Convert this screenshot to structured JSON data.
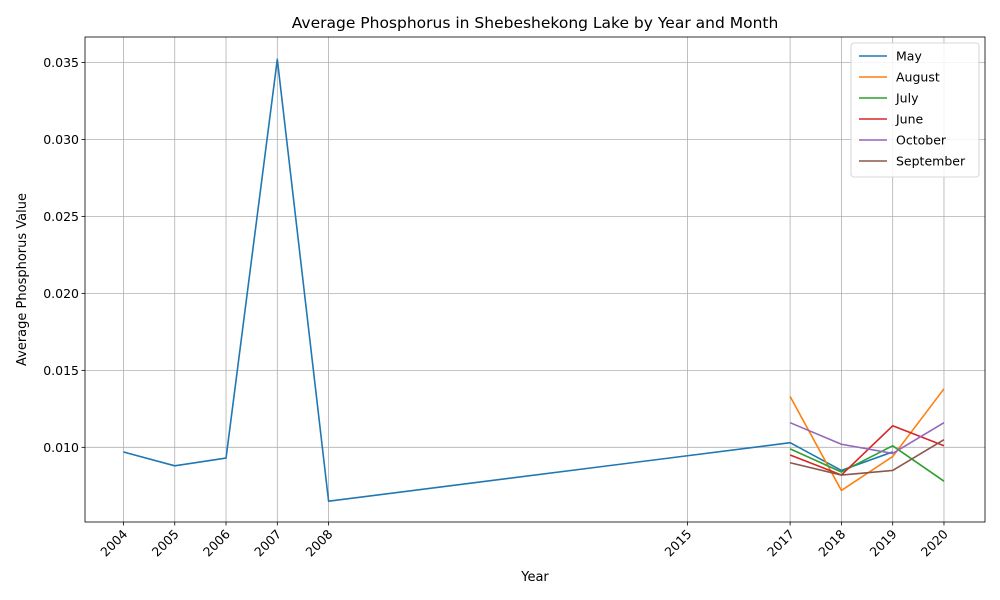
{
  "chart_data": {
    "type": "line",
    "title": "Average Phosphorus in Shebeshekong Lake by Year and Month",
    "xlabel": "Year",
    "ylabel": "Average Phosphorus Value",
    "xlim": [
      2003.25,
      2020.8
    ],
    "ylim": [
      0.00515,
      0.03665
    ],
    "xticks": [
      2004,
      2005,
      2006,
      2007,
      2008,
      2015,
      2017,
      2018,
      2019,
      2020
    ],
    "yticks": [
      0.01,
      0.015,
      0.02,
      0.025,
      0.03,
      0.035
    ],
    "ytick_labels": [
      "0.010",
      "0.015",
      "0.020",
      "0.025",
      "0.030",
      "0.035"
    ],
    "grid": true,
    "legend_position": "top-right",
    "series": [
      {
        "name": "May",
        "color": "#1f77b4",
        "x": [
          2004,
          2005,
          2006,
          2007,
          2008,
          2017,
          2018,
          2019
        ],
        "y": [
          0.0097,
          0.0088,
          0.0093,
          0.0352,
          0.0065,
          0.0103,
          0.0085,
          0.0097
        ]
      },
      {
        "name": "August",
        "color": "#ff7f0e",
        "x": [
          2017,
          2018,
          2019,
          2020
        ],
        "y": [
          0.0133,
          0.0072,
          0.0094,
          0.0138
        ]
      },
      {
        "name": "July",
        "color": "#2ca02c",
        "x": [
          2017,
          2018,
          2019,
          2020
        ],
        "y": [
          0.0099,
          0.0084,
          0.0101,
          0.0078
        ]
      },
      {
        "name": "June",
        "color": "#d62728",
        "x": [
          2017,
          2018,
          2019,
          2020
        ],
        "y": [
          0.0095,
          0.0082,
          0.0114,
          0.0101
        ]
      },
      {
        "name": "October",
        "color": "#9467bd",
        "x": [
          2017,
          2018,
          2019,
          2020
        ],
        "y": [
          0.0116,
          0.0102,
          0.0096,
          0.0116
        ]
      },
      {
        "name": "September",
        "color": "#8c564b",
        "x": [
          2017,
          2018,
          2019,
          2020
        ],
        "y": [
          0.009,
          0.0082,
          0.0085,
          0.0105
        ]
      }
    ]
  }
}
